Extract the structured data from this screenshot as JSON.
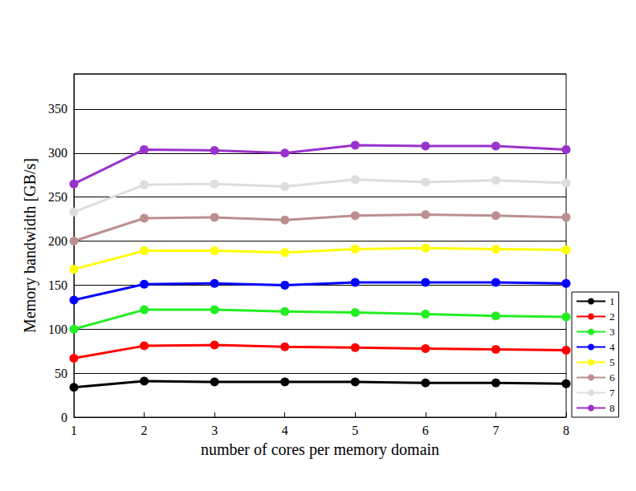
{
  "chart_data": {
    "type": "line",
    "x_label": "number of cores per memory domain",
    "y_label": "Memory bandwidth [GB/s]",
    "x": [
      1,
      2,
      3,
      4,
      5,
      6,
      7,
      8
    ],
    "xlim": [
      1,
      8
    ],
    "xticks": [
      1,
      2,
      3,
      4,
      5,
      6,
      7,
      8
    ],
    "ylim": [
      0,
      390
    ],
    "yticks": [
      0,
      50,
      100,
      150,
      200,
      250,
      300,
      350
    ],
    "grid": true,
    "legend": "right",
    "marker": "circle",
    "series": [
      {
        "name": "1",
        "color": "#000000",
        "values": [
          34,
          41,
          40,
          40,
          40,
          39,
          39,
          38
        ]
      },
      {
        "name": "2",
        "color": "#ff0000",
        "values": [
          67,
          81,
          82,
          80,
          79,
          78,
          77,
          76
        ]
      },
      {
        "name": "3",
        "color": "#22ee22",
        "values": [
          100,
          122,
          122,
          120,
          119,
          117,
          115,
          114
        ]
      },
      {
        "name": "4",
        "color": "#0000ff",
        "values": [
          133,
          151,
          152,
          150,
          153,
          153,
          153,
          152
        ]
      },
      {
        "name": "5",
        "color": "#ffff00",
        "values": [
          168,
          189,
          189,
          187,
          191,
          192,
          191,
          190
        ]
      },
      {
        "name": "6",
        "color": "#bc8f8f",
        "values": [
          200,
          226,
          227,
          224,
          229,
          230,
          229,
          227
        ]
      },
      {
        "name": "7",
        "color": "#dddddd",
        "values": [
          233,
          264,
          265,
          262,
          270,
          267,
          269,
          266
        ]
      },
      {
        "name": "8",
        "color": "#9932cc",
        "values": [
          265,
          304,
          303,
          300,
          309,
          308,
          308,
          304
        ]
      }
    ]
  }
}
